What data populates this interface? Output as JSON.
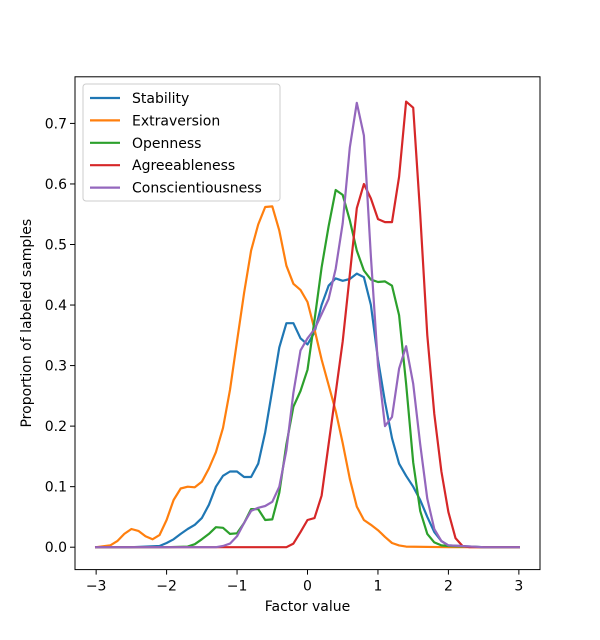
{
  "chart_data": {
    "type": "line",
    "title": "",
    "xlabel": "Factor value",
    "ylabel": "Proportion of labeled samples",
    "xlim": [
      -3.3,
      3.3
    ],
    "ylim": [
      -0.037,
      0.777
    ],
    "xticks": [
      -3,
      -2,
      -1,
      0,
      1,
      2,
      3
    ],
    "xtick_labels": [
      "−3",
      "−2",
      "−1",
      "0",
      "1",
      "2",
      "3"
    ],
    "yticks": [
      0.0,
      0.1,
      0.2,
      0.3,
      0.4,
      0.5,
      0.6,
      0.7
    ],
    "ytick_labels": [
      "0.0",
      "0.1",
      "0.2",
      "0.3",
      "0.4",
      "0.5",
      "0.6",
      "0.7"
    ],
    "grid": false,
    "legend_position": "top-left",
    "series": [
      {
        "name": "Stability",
        "color": "#1f77b4",
        "points": [
          [
            -3,
            0
          ],
          [
            -2.5,
            0
          ],
          [
            -2.1,
            0.002
          ],
          [
            -2.0,
            0.007
          ],
          [
            -1.9,
            0.013
          ],
          [
            -1.8,
            0.022
          ],
          [
            -1.7,
            0.03
          ],
          [
            -1.6,
            0.037
          ],
          [
            -1.5,
            0.048
          ],
          [
            -1.4,
            0.07
          ],
          [
            -1.3,
            0.1
          ],
          [
            -1.2,
            0.118
          ],
          [
            -1.1,
            0.125
          ],
          [
            -1.0,
            0.125
          ],
          [
            -0.9,
            0.116
          ],
          [
            -0.8,
            0.116
          ],
          [
            -0.7,
            0.138
          ],
          [
            -0.6,
            0.19
          ],
          [
            -0.5,
            0.26
          ],
          [
            -0.4,
            0.33
          ],
          [
            -0.3,
            0.37
          ],
          [
            -0.2,
            0.37
          ],
          [
            -0.1,
            0.345
          ],
          [
            0.0,
            0.335
          ],
          [
            0.1,
            0.355
          ],
          [
            0.2,
            0.4
          ],
          [
            0.3,
            0.432
          ],
          [
            0.4,
            0.444
          ],
          [
            0.5,
            0.44
          ],
          [
            0.6,
            0.443
          ],
          [
            0.7,
            0.452
          ],
          [
            0.8,
            0.446
          ],
          [
            0.9,
            0.4
          ],
          [
            1.0,
            0.31
          ],
          [
            1.1,
            0.24
          ],
          [
            1.2,
            0.18
          ],
          [
            1.3,
            0.138
          ],
          [
            1.4,
            0.118
          ],
          [
            1.5,
            0.1
          ],
          [
            1.6,
            0.078
          ],
          [
            1.7,
            0.05
          ],
          [
            1.8,
            0.025
          ],
          [
            1.9,
            0.01
          ],
          [
            2.0,
            0.003
          ],
          [
            2.5,
            0
          ],
          [
            3,
            0
          ]
        ]
      },
      {
        "name": "Extraversion",
        "color": "#ff7f0e",
        "points": [
          [
            -3,
            0
          ],
          [
            -2.8,
            0.003
          ],
          [
            -2.7,
            0.01
          ],
          [
            -2.6,
            0.022
          ],
          [
            -2.5,
            0.03
          ],
          [
            -2.4,
            0.027
          ],
          [
            -2.3,
            0.018
          ],
          [
            -2.2,
            0.013
          ],
          [
            -2.1,
            0.02
          ],
          [
            -2.0,
            0.045
          ],
          [
            -1.9,
            0.078
          ],
          [
            -1.8,
            0.097
          ],
          [
            -1.7,
            0.1
          ],
          [
            -1.6,
            0.099
          ],
          [
            -1.5,
            0.108
          ],
          [
            -1.4,
            0.13
          ],
          [
            -1.3,
            0.157
          ],
          [
            -1.2,
            0.197
          ],
          [
            -1.1,
            0.26
          ],
          [
            -1.0,
            0.34
          ],
          [
            -0.9,
            0.42
          ],
          [
            -0.8,
            0.49
          ],
          [
            -0.7,
            0.533
          ],
          [
            -0.6,
            0.562
          ],
          [
            -0.5,
            0.563
          ],
          [
            -0.4,
            0.523
          ],
          [
            -0.3,
            0.465
          ],
          [
            -0.2,
            0.435
          ],
          [
            -0.1,
            0.425
          ],
          [
            0.0,
            0.405
          ],
          [
            0.1,
            0.36
          ],
          [
            0.2,
            0.31
          ],
          [
            0.3,
            0.268
          ],
          [
            0.4,
            0.225
          ],
          [
            0.5,
            0.172
          ],
          [
            0.6,
            0.113
          ],
          [
            0.7,
            0.067
          ],
          [
            0.8,
            0.045
          ],
          [
            0.9,
            0.037
          ],
          [
            1.0,
            0.028
          ],
          [
            1.1,
            0.017
          ],
          [
            1.2,
            0.007
          ],
          [
            1.3,
            0.003
          ],
          [
            1.4,
            0.001
          ],
          [
            2.0,
            0
          ],
          [
            3,
            0
          ]
        ]
      },
      {
        "name": "Openness",
        "color": "#2ca02c",
        "points": [
          [
            -3,
            0
          ],
          [
            -2,
            0
          ],
          [
            -1.7,
            0.001
          ],
          [
            -1.6,
            0.005
          ],
          [
            -1.5,
            0.013
          ],
          [
            -1.4,
            0.022
          ],
          [
            -1.3,
            0.033
          ],
          [
            -1.2,
            0.032
          ],
          [
            -1.1,
            0.022
          ],
          [
            -1.0,
            0.023
          ],
          [
            -0.9,
            0.04
          ],
          [
            -0.8,
            0.063
          ],
          [
            -0.7,
            0.063
          ],
          [
            -0.6,
            0.045
          ],
          [
            -0.5,
            0.046
          ],
          [
            -0.4,
            0.09
          ],
          [
            -0.3,
            0.17
          ],
          [
            -0.2,
            0.232
          ],
          [
            -0.1,
            0.258
          ],
          [
            0.0,
            0.293
          ],
          [
            0.1,
            0.375
          ],
          [
            0.2,
            0.462
          ],
          [
            0.3,
            0.53
          ],
          [
            0.4,
            0.59
          ],
          [
            0.5,
            0.582
          ],
          [
            0.6,
            0.54
          ],
          [
            0.7,
            0.49
          ],
          [
            0.8,
            0.457
          ],
          [
            0.9,
            0.442
          ],
          [
            1.0,
            0.438
          ],
          [
            1.1,
            0.439
          ],
          [
            1.2,
            0.432
          ],
          [
            1.3,
            0.383
          ],
          [
            1.4,
            0.27
          ],
          [
            1.5,
            0.14
          ],
          [
            1.6,
            0.06
          ],
          [
            1.7,
            0.022
          ],
          [
            1.8,
            0.008
          ],
          [
            1.9,
            0.003
          ],
          [
            2.0,
            0.002
          ],
          [
            2.5,
            0
          ],
          [
            3,
            0
          ]
        ]
      },
      {
        "name": "Agreeableness",
        "color": "#d62728",
        "points": [
          [
            -3,
            0
          ],
          [
            -2,
            0
          ],
          [
            -1,
            0
          ],
          [
            -0.3,
            0
          ],
          [
            -0.2,
            0.006
          ],
          [
            -0.1,
            0.025
          ],
          [
            0.0,
            0.045
          ],
          [
            0.1,
            0.048
          ],
          [
            0.2,
            0.085
          ],
          [
            0.3,
            0.17
          ],
          [
            0.4,
            0.255
          ],
          [
            0.5,
            0.34
          ],
          [
            0.6,
            0.45
          ],
          [
            0.7,
            0.56
          ],
          [
            0.8,
            0.6
          ],
          [
            0.9,
            0.576
          ],
          [
            1.0,
            0.542
          ],
          [
            1.1,
            0.537
          ],
          [
            1.2,
            0.537
          ],
          [
            1.3,
            0.612
          ],
          [
            1.4,
            0.736
          ],
          [
            1.5,
            0.726
          ],
          [
            1.6,
            0.55
          ],
          [
            1.7,
            0.35
          ],
          [
            1.8,
            0.22
          ],
          [
            1.9,
            0.125
          ],
          [
            2.0,
            0.058
          ],
          [
            2.1,
            0.015
          ],
          [
            2.2,
            0.002
          ],
          [
            2.3,
            0
          ],
          [
            3,
            0
          ]
        ]
      },
      {
        "name": "Conscientiousness",
        "color": "#9467bd",
        "points": [
          [
            -3,
            0
          ],
          [
            -2,
            0
          ],
          [
            -1.3,
            0
          ],
          [
            -1.2,
            0.002
          ],
          [
            -1.1,
            0.006
          ],
          [
            -1.0,
            0.018
          ],
          [
            -0.9,
            0.04
          ],
          [
            -0.8,
            0.06
          ],
          [
            -0.7,
            0.065
          ],
          [
            -0.6,
            0.068
          ],
          [
            -0.5,
            0.075
          ],
          [
            -0.4,
            0.1
          ],
          [
            -0.3,
            0.16
          ],
          [
            -0.2,
            0.255
          ],
          [
            -0.1,
            0.325
          ],
          [
            0.0,
            0.345
          ],
          [
            0.1,
            0.36
          ],
          [
            0.2,
            0.385
          ],
          [
            0.3,
            0.41
          ],
          [
            0.4,
            0.46
          ],
          [
            0.5,
            0.535
          ],
          [
            0.6,
            0.66
          ],
          [
            0.7,
            0.734
          ],
          [
            0.8,
            0.68
          ],
          [
            0.9,
            0.48
          ],
          [
            1.0,
            0.3
          ],
          [
            1.1,
            0.2
          ],
          [
            1.2,
            0.215
          ],
          [
            1.3,
            0.295
          ],
          [
            1.4,
            0.332
          ],
          [
            1.5,
            0.27
          ],
          [
            1.6,
            0.17
          ],
          [
            1.7,
            0.08
          ],
          [
            1.8,
            0.03
          ],
          [
            1.9,
            0.01
          ],
          [
            2.0,
            0.003
          ],
          [
            2.5,
            0
          ],
          [
            3,
            0
          ]
        ]
      }
    ]
  }
}
